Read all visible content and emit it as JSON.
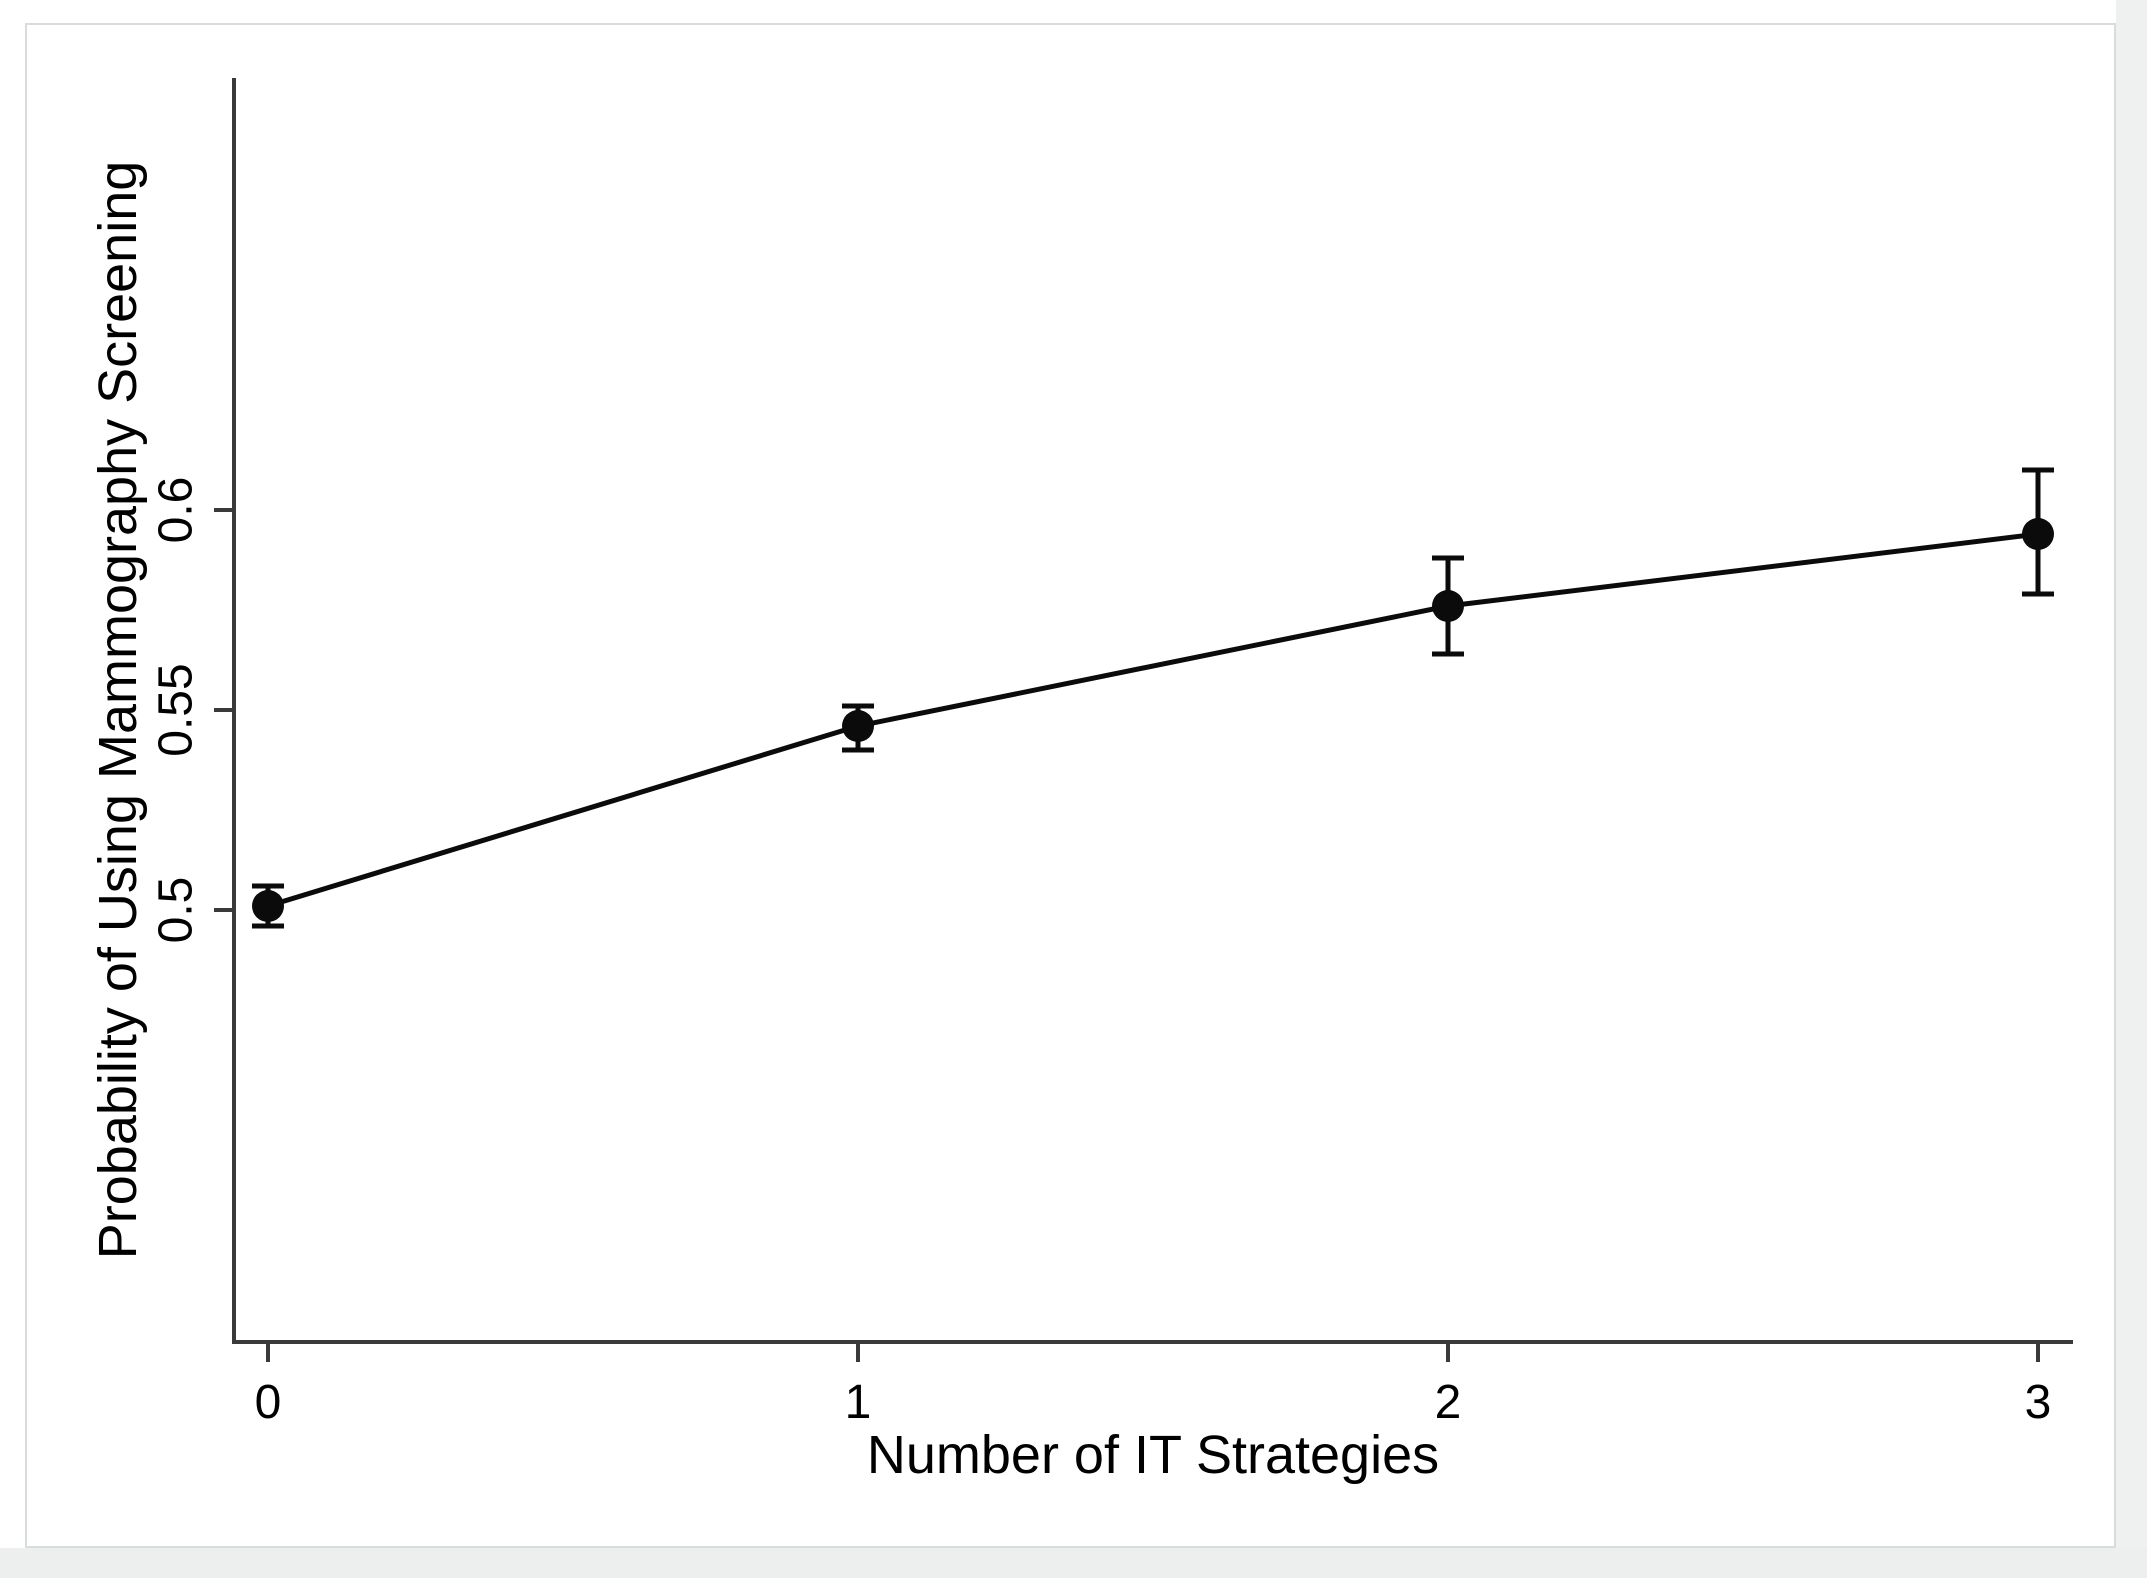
{
  "page": {
    "background_color": "#ffffff",
    "outer_margin_color": "#eef1f0",
    "card_background": "#ffffff",
    "card_border_color": "#d7dcdc"
  },
  "chart_data": {
    "type": "line",
    "title": "",
    "xlabel": "Number of IT Strategies",
    "ylabel": "Probability of Using Mammography Screening",
    "x": [
      0,
      1,
      2,
      3
    ],
    "x_tick_labels": [
      "0",
      "1",
      "2",
      "3"
    ],
    "y_ticks": [
      0.5,
      0.55,
      0.6
    ],
    "y_tick_labels": [
      "0.5",
      "0.55",
      "0.6"
    ],
    "values": [
      0.501,
      0.546,
      0.576,
      0.594
    ],
    "ci_low": [
      0.496,
      0.54,
      0.564,
      0.579
    ],
    "ci_high": [
      0.506,
      0.551,
      0.588,
      0.61
    ],
    "error_bars": true,
    "marker": "filled-circle",
    "grid": false,
    "legend": "none",
    "xlim": [
      -0.06,
      3.06
    ],
    "ylim": [
      0.392,
      0.708
    ],
    "line_color": "#0b0b0b",
    "marker_color": "#0b0b0b",
    "axis_color": "#3a3a3a",
    "text_color": "#000000"
  }
}
